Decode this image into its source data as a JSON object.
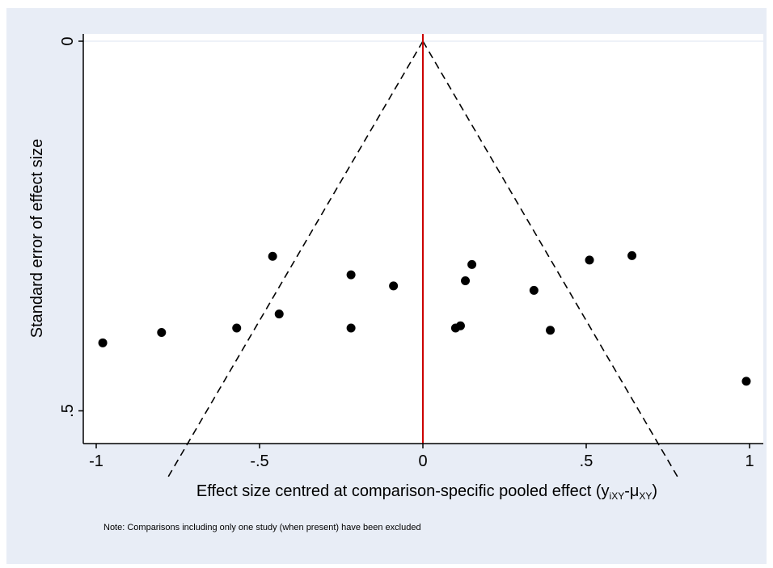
{
  "chart_data": {
    "type": "scatter",
    "title": "",
    "xlabel": "Effect size centred at comparison-specific pooled effect (y",
    "xlabel_sub1": "iXY",
    "xlabel_mid": "-μ",
    "xlabel_sub2": "XY",
    "xlabel_end": ")",
    "ylabel": "Standard error of effect size",
    "note": "Note: Comparisons including only one study (when present) have been excluded",
    "xlim": [
      -1.04,
      1.04
    ],
    "ylim": [
      0,
      0.612
    ],
    "y_reversed": true,
    "x_ticks": [
      -1,
      -0.5,
      0,
      0.5,
      1
    ],
    "x_tick_labels": [
      "-1",
      "-.5",
      "0",
      ".5",
      "1"
    ],
    "y_ticks": [
      0,
      0.5
    ],
    "y_tick_labels": [
      "0",
      ".5"
    ],
    "reference_line": {
      "x": 0,
      "color": "#cc0000"
    },
    "funnel": {
      "x_at_bottom": [
        -0.782,
        0.782
      ],
      "y_bottom": 0.591,
      "style": "dashed"
    },
    "points": [
      {
        "x": -0.98,
        "y": 0.408
      },
      {
        "x": -0.8,
        "y": 0.394
      },
      {
        "x": -0.57,
        "y": 0.388
      },
      {
        "x": -0.46,
        "y": 0.291
      },
      {
        "x": -0.44,
        "y": 0.369
      },
      {
        "x": -0.22,
        "y": 0.316
      },
      {
        "x": -0.22,
        "y": 0.388
      },
      {
        "x": -0.09,
        "y": 0.331
      },
      {
        "x": 0.1,
        "y": 0.388
      },
      {
        "x": 0.115,
        "y": 0.385
      },
      {
        "x": 0.13,
        "y": 0.324
      },
      {
        "x": 0.15,
        "y": 0.302
      },
      {
        "x": 0.34,
        "y": 0.337
      },
      {
        "x": 0.39,
        "y": 0.391
      },
      {
        "x": 0.51,
        "y": 0.296
      },
      {
        "x": 0.64,
        "y": 0.29
      },
      {
        "x": 0.99,
        "y": 0.46
      }
    ],
    "colors": {
      "background": "#e8edf6",
      "plot_area": "#ffffff",
      "points": "#000000",
      "grid": "#e8edf6"
    }
  }
}
